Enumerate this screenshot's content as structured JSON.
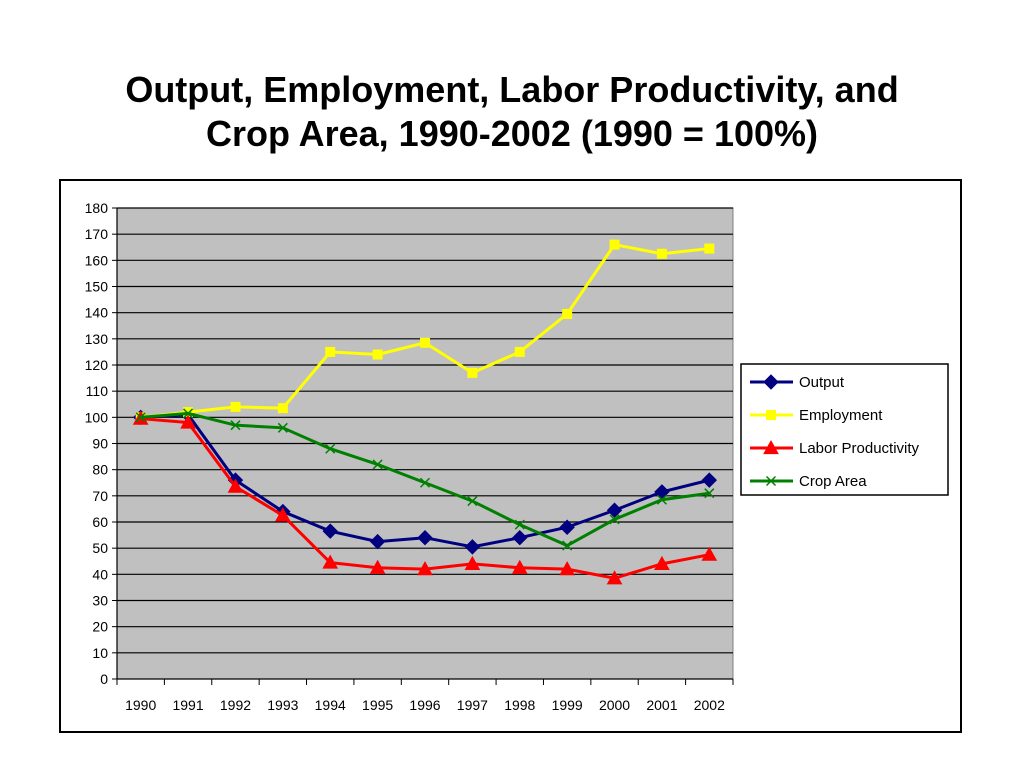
{
  "slide": {
    "title_line1": "Output, Employment, Labor Productivity, and",
    "title_line2": "Crop Area, 1990-2002 (1990 = 100%)"
  },
  "chart_data": {
    "type": "line",
    "title": "Output, Employment, Labor Productivity, and Crop Area, 1990-2002 (1990 = 100%)",
    "xlabel": "",
    "ylabel": "",
    "categories": [
      "1990",
      "1991",
      "1992",
      "1993",
      "1994",
      "1995",
      "1996",
      "1997",
      "1998",
      "1999",
      "2000",
      "2001",
      "2002"
    ],
    "ylim": [
      0,
      180
    ],
    "yticks": [
      0,
      10,
      20,
      30,
      40,
      50,
      60,
      70,
      80,
      90,
      100,
      110,
      120,
      130,
      140,
      150,
      160,
      170,
      180
    ],
    "grid": true,
    "legend_position": "right",
    "plot_background": "#c0c0c0",
    "series": [
      {
        "name": "Output",
        "color": "#000080",
        "marker": "diamond",
        "values": [
          100,
          101,
          76,
          64,
          56.5,
          52.5,
          54,
          50.5,
          54,
          58,
          64.5,
          71.5,
          76
        ]
      },
      {
        "name": "Employment",
        "color": "#ffff00",
        "marker": "square",
        "values": [
          100,
          102,
          104,
          103.5,
          125,
          124,
          128.5,
          117,
          125,
          139.5,
          166,
          162.5,
          164.5
        ]
      },
      {
        "name": "Labor Productivity",
        "color": "#ff0000",
        "marker": "triangle",
        "values": [
          99.5,
          98,
          73.5,
          62.5,
          44.5,
          42.5,
          42,
          44,
          42.5,
          42,
          38.5,
          44,
          47.5
        ]
      },
      {
        "name": "Crop Area",
        "color": "#008000",
        "marker": "x",
        "values": [
          100,
          101.5,
          97,
          96,
          88,
          82,
          75,
          68,
          59,
          51,
          61,
          68.5,
          71
        ]
      }
    ]
  }
}
